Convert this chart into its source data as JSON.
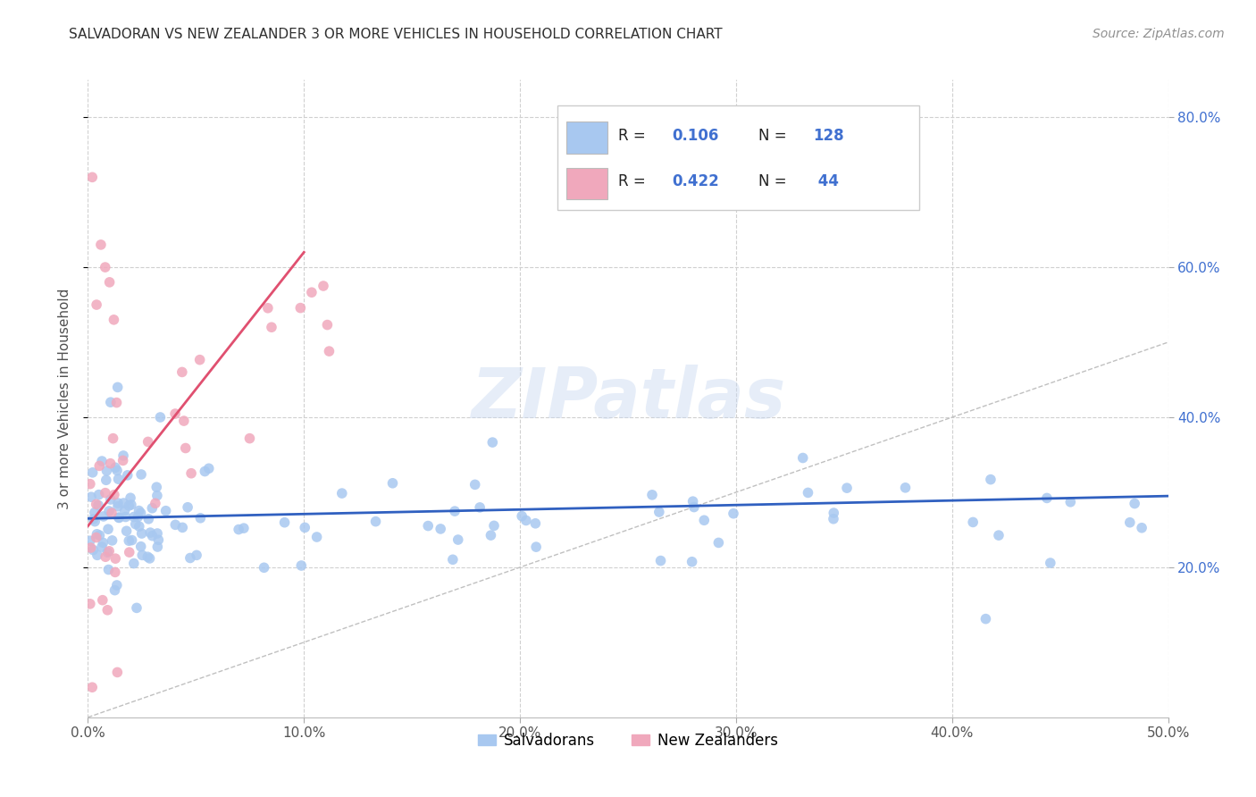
{
  "title": "SALVADORAN VS NEW ZEALANDER 3 OR MORE VEHICLES IN HOUSEHOLD CORRELATION CHART",
  "source": "Source: ZipAtlas.com",
  "ylabel": "3 or more Vehicles in Household",
  "xlim": [
    0.0,
    0.5
  ],
  "ylim": [
    0.0,
    0.85
  ],
  "yticks": [
    0.2,
    0.4,
    0.6,
    0.8
  ],
  "ytick_labels": [
    "20.0%",
    "40.0%",
    "60.0%",
    "80.0%"
  ],
  "xticks": [
    0.0,
    0.1,
    0.2,
    0.3,
    0.4,
    0.5
  ],
  "xtick_labels": [
    "0.0%",
    "10.0%",
    "20.0%",
    "30.0%",
    "40.0%",
    "50.0%"
  ],
  "salvadoran_R": 0.106,
  "salvadoran_N": 128,
  "newzealander_R": 0.422,
  "newzealander_N": 44,
  "salvadoran_color": "#a8c8f0",
  "newzealander_color": "#f0a8bc",
  "salvadoran_line_color": "#3060c0",
  "newzealander_line_color": "#e05070",
  "diagonal_color": "#c0c0c0",
  "background_color": "#ffffff",
  "grid_color": "#d0d0d0",
  "watermark": "ZIPatlas",
  "tick_color": "#4070d0",
  "title_color": "#303030",
  "source_color": "#909090",
  "ylabel_color": "#505050"
}
